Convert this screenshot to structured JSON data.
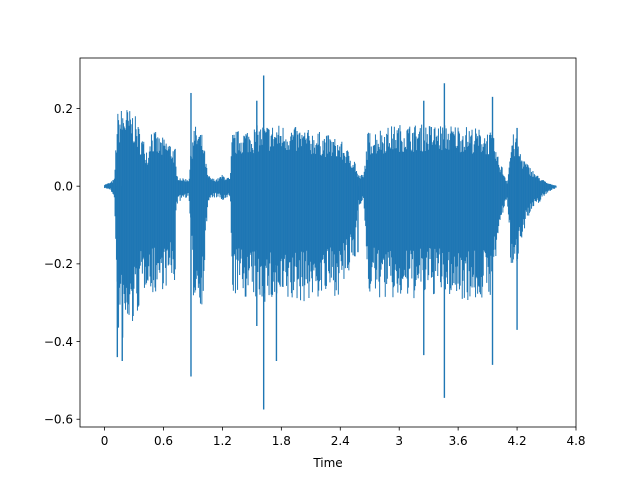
{
  "chart_data": {
    "type": "area",
    "title": "",
    "xlabel": "Time",
    "ylabel": "",
    "xlim": [
      -0.25,
      4.8
    ],
    "ylim": [
      -0.62,
      0.33
    ],
    "xticks": [
      {
        "value": 0,
        "label": "0"
      },
      {
        "value": 0.6,
        "label": "0.6"
      },
      {
        "value": 1.2,
        "label": "1.2"
      },
      {
        "value": 1.8,
        "label": "1.8"
      },
      {
        "value": 2.4,
        "label": "2.4"
      },
      {
        "value": 3.0,
        "label": "3"
      },
      {
        "value": 3.6,
        "label": "3.6"
      },
      {
        "value": 4.2,
        "label": "4.2"
      },
      {
        "value": 4.8,
        "label": "4.8"
      }
    ],
    "yticks": [
      {
        "value": 0.2,
        "label": "0.2"
      },
      {
        "value": 0.0,
        "label": "0.0"
      },
      {
        "value": -0.2,
        "label": "−0.2"
      },
      {
        "value": -0.4,
        "label": "−0.4"
      },
      {
        "value": -0.6,
        "label": "−0.6"
      }
    ],
    "grid": false,
    "series": [
      {
        "color": "#1f77b4",
        "envelope": {
          "x": [
            0.0,
            0.06,
            0.1,
            0.13,
            0.2,
            0.3,
            0.4,
            0.45,
            0.46,
            0.55,
            0.65,
            0.72,
            0.73,
            0.8,
            0.86,
            0.9,
            0.96,
            1.0,
            1.05,
            1.1,
            1.15,
            1.2,
            1.28,
            1.3,
            1.45,
            1.6,
            1.8,
            2.0,
            2.2,
            2.4,
            2.55,
            2.58,
            2.64,
            2.68,
            2.8,
            3.0,
            3.2,
            3.4,
            3.6,
            3.8,
            3.95,
            4.0,
            4.05,
            4.1,
            4.15,
            4.2,
            4.25,
            4.3,
            4.4,
            4.5,
            4.55,
            4.6
          ],
          "upper": [
            0.005,
            0.01,
            0.02,
            0.19,
            0.21,
            0.19,
            0.12,
            0.09,
            0.16,
            0.13,
            0.12,
            0.1,
            0.03,
            0.02,
            0.02,
            0.16,
            0.15,
            0.13,
            0.03,
            0.02,
            0.02,
            0.03,
            0.02,
            0.14,
            0.15,
            0.16,
            0.16,
            0.15,
            0.14,
            0.12,
            0.07,
            0.03,
            0.03,
            0.14,
            0.15,
            0.16,
            0.16,
            0.16,
            0.16,
            0.15,
            0.14,
            0.08,
            0.05,
            0.01,
            0.14,
            0.12,
            0.08,
            0.06,
            0.03,
            0.01,
            0.005,
            0.002
          ],
          "lower": [
            -0.005,
            -0.01,
            -0.03,
            -0.38,
            -0.41,
            -0.36,
            -0.28,
            -0.24,
            -0.29,
            -0.27,
            -0.26,
            -0.25,
            -0.05,
            -0.03,
            -0.03,
            -0.29,
            -0.3,
            -0.31,
            -0.05,
            -0.03,
            -0.03,
            -0.04,
            -0.03,
            -0.28,
            -0.29,
            -0.3,
            -0.31,
            -0.3,
            -0.29,
            -0.28,
            -0.2,
            -0.05,
            -0.04,
            -0.28,
            -0.29,
            -0.3,
            -0.29,
            -0.28,
            -0.29,
            -0.3,
            -0.28,
            -0.15,
            -0.08,
            -0.03,
            -0.27,
            -0.2,
            -0.13,
            -0.09,
            -0.05,
            -0.02,
            -0.01,
            -0.005
          ]
        },
        "spikes": [
          {
            "x": 0.88,
            "y": 0.24
          },
          {
            "x": 0.88,
            "y": -0.49
          },
          {
            "x": 1.62,
            "y": 0.285
          },
          {
            "x": 1.62,
            "y": -0.575
          },
          {
            "x": 1.55,
            "y": 0.22
          },
          {
            "x": 1.55,
            "y": -0.36
          },
          {
            "x": 1.75,
            "y": -0.45
          },
          {
            "x": 2.58,
            "y": -0.17
          },
          {
            "x": 3.25,
            "y": 0.22
          },
          {
            "x": 3.25,
            "y": -0.435
          },
          {
            "x": 3.46,
            "y": 0.265
          },
          {
            "x": 3.46,
            "y": -0.545
          },
          {
            "x": 3.95,
            "y": 0.23
          },
          {
            "x": 3.95,
            "y": -0.46
          },
          {
            "x": 4.2,
            "y": 0.15
          },
          {
            "x": 4.2,
            "y": -0.37
          },
          {
            "x": 0.13,
            "y": -0.44
          },
          {
            "x": 0.18,
            "y": -0.45
          }
        ]
      }
    ]
  }
}
